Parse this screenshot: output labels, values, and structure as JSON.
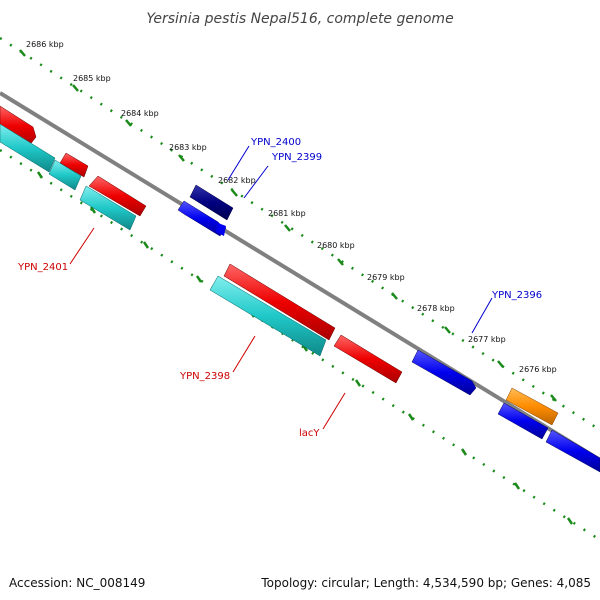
{
  "title": "Yersinia pestis Nepal516, complete genome",
  "footer": {
    "accession": "Accession: NC_008149",
    "stats": "Topology: circular; Length: 4,534,590 bp; Genes: 4,085"
  },
  "ticks": [
    "2686 kbp",
    "2685 kbp",
    "2684 kbp",
    "2683 kbp",
    "2682 kbp",
    "2681 kbp",
    "2680 kbp",
    "2679 kbp",
    "2678 kbp",
    "2677 kbp",
    "2676 kbp"
  ],
  "gene_labels": {
    "ypn_2400": "YPN_2400",
    "ypn_2399": "YPN_2399",
    "ypn_2401": "YPN_2401",
    "ypn_2398": "YPN_2398",
    "lacy": "lacY",
    "ypn_2396": "YPN_2396"
  },
  "colors": {
    "backbone": "#808080",
    "forward_cds": "#0000ee",
    "forward_cds_dark": "#000080",
    "reverse_cds": "#ee0000",
    "reverse_feature": "#20c8c8",
    "orange_feature": "#ff8c00",
    "tick_marks": "#1a8a1a",
    "label_blue": "#0000cc",
    "label_red": "#cc0000"
  }
}
